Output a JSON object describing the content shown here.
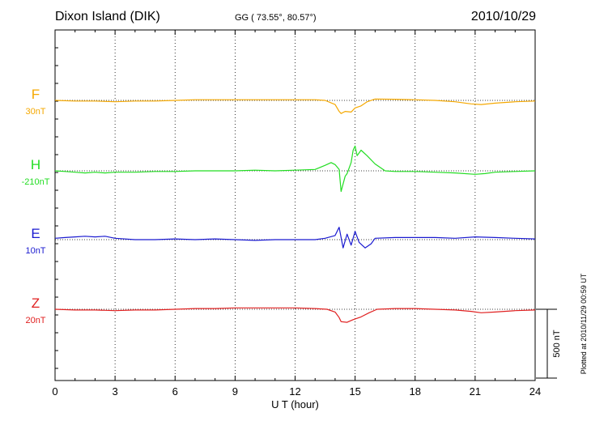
{
  "header": {
    "station": "Dixon Island (DIK)",
    "coords": "GG ( 73.55°,  80.57°)",
    "date": "2010/10/29"
  },
  "side_note": "Plotted at 2010/11/29 00:59 UT",
  "scale_bar": {
    "label": "500 nT",
    "value_nT": 500
  },
  "chart_data": {
    "type": "line",
    "title": "Dixon Island (DIK)",
    "xlabel": "U T (hour)",
    "ylabel": "",
    "xlim": [
      0,
      24
    ],
    "x_ticks": [
      0,
      3,
      6,
      9,
      12,
      15,
      18,
      21,
      24
    ],
    "x_tick_labels": [
      "0",
      "3",
      "6",
      "9",
      "12",
      "15",
      "18",
      "21",
      "24"
    ],
    "grid": true,
    "series": [
      {
        "name": "F",
        "baseline": "30nT",
        "color": "#f5a800",
        "x": [
          0,
          1,
          2,
          3,
          4,
          5,
          6,
          7,
          8,
          9,
          10,
          11,
          12,
          13,
          13.5,
          14,
          14.2,
          14.3,
          14.5,
          14.8,
          15,
          15.3,
          15.6,
          16,
          17,
          18,
          19,
          20,
          20.8,
          21.3,
          22,
          23,
          24
        ],
        "values": [
          0,
          -5,
          -5,
          -10,
          -5,
          -5,
          0,
          5,
          5,
          5,
          5,
          5,
          5,
          5,
          0,
          -30,
          -80,
          -95,
          -80,
          -85,
          -55,
          -40,
          -10,
          10,
          8,
          5,
          0,
          -10,
          -25,
          -30,
          -20,
          -10,
          -5
        ]
      },
      {
        "name": "H",
        "baseline": "-210nT",
        "color": "#22dd22",
        "x": [
          0,
          0.5,
          1,
          1.5,
          2,
          2.5,
          3,
          4,
          5,
          6,
          7,
          8,
          9,
          10,
          11,
          12,
          13,
          13.5,
          13.8,
          14,
          14.2,
          14.3,
          14.5,
          14.6,
          14.8,
          14.9,
          15,
          15.1,
          15.3,
          15.6,
          16,
          16.5,
          17,
          18,
          19,
          20,
          21,
          21.5,
          22,
          23,
          24
        ],
        "values": [
          0,
          -5,
          -10,
          -15,
          -10,
          -15,
          -10,
          -10,
          -5,
          -5,
          0,
          0,
          0,
          5,
          0,
          5,
          10,
          40,
          60,
          45,
          10,
          -150,
          -40,
          -20,
          60,
          150,
          180,
          110,
          150,
          110,
          50,
          0,
          -5,
          -5,
          -10,
          -15,
          -25,
          -20,
          -10,
          -5,
          0
        ]
      },
      {
        "name": "E",
        "baseline": "10nT",
        "color": "#1a1ad0",
        "x": [
          0,
          0.5,
          1,
          1.5,
          2,
          2.5,
          3,
          4,
          5,
          6,
          7,
          8,
          9,
          10,
          11,
          12,
          13,
          13.5,
          14,
          14.2,
          14.4,
          14.6,
          14.8,
          15,
          15.2,
          15.5,
          15.8,
          16,
          17,
          18,
          19,
          20,
          21,
          22,
          23,
          24
        ],
        "values": [
          10,
          15,
          20,
          25,
          20,
          25,
          10,
          0,
          0,
          5,
          0,
          5,
          0,
          -5,
          0,
          0,
          0,
          10,
          30,
          90,
          -60,
          40,
          -40,
          60,
          -20,
          -60,
          -30,
          10,
          15,
          15,
          15,
          10,
          20,
          15,
          10,
          5
        ]
      },
      {
        "name": "Z",
        "baseline": "20nT",
        "color": "#e02020",
        "x": [
          0,
          1,
          2,
          3,
          4,
          5,
          6,
          7,
          8,
          9,
          10,
          11,
          12,
          13,
          13.6,
          14,
          14.2,
          14.3,
          14.6,
          14.9,
          15.3,
          15.7,
          16.1,
          17,
          18,
          19,
          20,
          20.8,
          21.3,
          22,
          23,
          24
        ],
        "values": [
          0,
          -5,
          -5,
          -10,
          -5,
          -5,
          0,
          5,
          5,
          10,
          10,
          10,
          10,
          5,
          0,
          -20,
          -60,
          -90,
          -95,
          -75,
          -55,
          -25,
          0,
          5,
          5,
          0,
          -5,
          -15,
          -25,
          -20,
          -10,
          -5
        ]
      }
    ]
  }
}
